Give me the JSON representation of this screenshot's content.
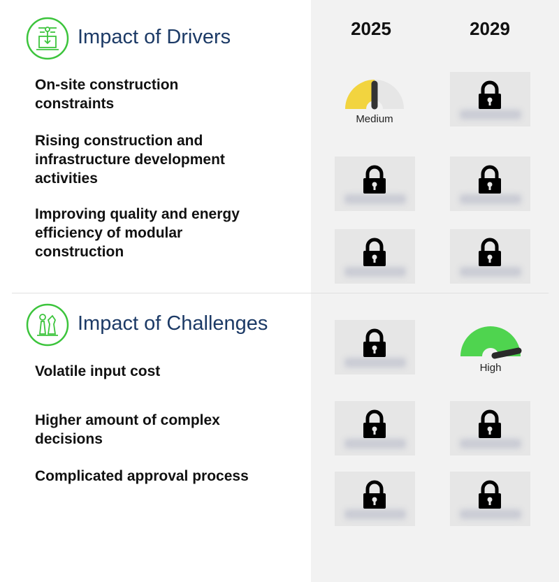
{
  "columns": [
    "2025",
    "2029"
  ],
  "drivers": {
    "title": "Impact of Drivers",
    "icon": "drivers-icon",
    "items": [
      {
        "label": "On-site construction constraints",
        "y2025": {
          "type": "gauge",
          "level": "Medium"
        },
        "y2029": {
          "type": "locked"
        }
      },
      {
        "label": "Rising construction and infrastructure development activities",
        "y2025": {
          "type": "locked"
        },
        "y2029": {
          "type": "locked"
        }
      },
      {
        "label": "Improving quality and energy efficiency of modular construction",
        "y2025": {
          "type": "locked"
        },
        "y2029": {
          "type": "locked"
        }
      }
    ]
  },
  "challenges": {
    "title": "Impact of Challenges",
    "icon": "chess-strategy-icon",
    "items": [
      {
        "label": "Volatile input cost",
        "y2025": {
          "type": "locked"
        },
        "y2029": {
          "type": "gauge",
          "level": "High"
        }
      },
      {
        "label": "Higher amount of complex decisions",
        "y2025": {
          "type": "locked"
        },
        "y2029": {
          "type": "locked"
        }
      },
      {
        "label": "Complicated approval process",
        "y2025": {
          "type": "locked"
        },
        "y2029": {
          "type": "locked"
        }
      }
    ]
  },
  "colors": {
    "accent_green": "#3cc43c",
    "title_blue": "#1c3a66",
    "medium": "#f2d43f",
    "high": "#4fd44f"
  }
}
